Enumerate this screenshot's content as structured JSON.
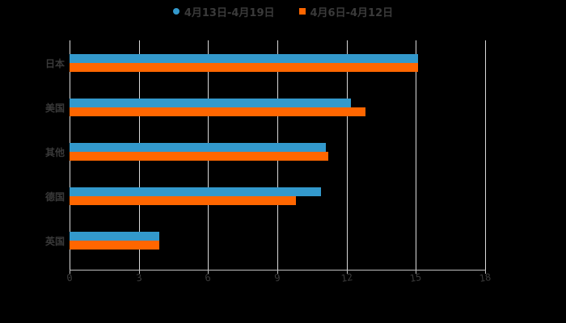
{
  "chart_data": {
    "type": "bar",
    "orientation": "horizontal",
    "categories": [
      "日本",
      "美国",
      "其他",
      "德国",
      "英国"
    ],
    "series": [
      {
        "name": "4月13日-4月19日",
        "color": "#3399cc",
        "values": [
          15.1,
          12.2,
          11.1,
          10.9,
          3.9
        ]
      },
      {
        "name": "4月6日-4月12日",
        "color": "#ff6600",
        "values": [
          15.1,
          12.8,
          11.2,
          9.8,
          3.9
        ]
      }
    ],
    "xlim": [
      0,
      18
    ],
    "xticks": [
      "0",
      "3",
      "6",
      "9",
      "12",
      "15",
      "18"
    ],
    "grid": true,
    "legend_position": "top",
    "title": "",
    "xlabel": "",
    "ylabel": ""
  }
}
